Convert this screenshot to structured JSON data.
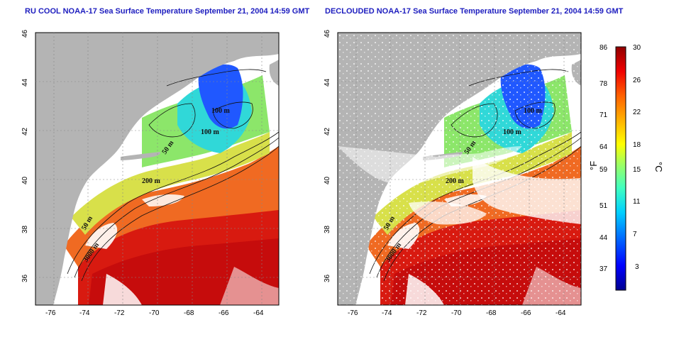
{
  "titles": {
    "left": "RU COOL NOAA-17 Sea Surface Temperature September 21, 2004 14:59 GMT",
    "right": "DECLOUDED NOAA-17 Sea Surface Temperature September 21, 2004 14:59 GMT"
  },
  "axes": {
    "lon_ticks": [
      "-76",
      "-74",
      "-72",
      "-70",
      "-68",
      "-66",
      "-64"
    ],
    "lat_ticks": [
      "36",
      "38",
      "40",
      "42",
      "44",
      "46"
    ]
  },
  "contour_labels": {
    "left": [
      "100 m",
      "100 m",
      "50 m",
      "200 m",
      "50 m",
      "3000 m"
    ],
    "right": [
      "100 m",
      "100 m",
      "50 m",
      "200 m",
      "50 m",
      "3000 m"
    ]
  },
  "colorbar": {
    "f_label": "°F",
    "c_label": "°C",
    "f_ticks": [
      "86",
      "78",
      "71",
      "64",
      "59",
      "51",
      "44",
      "37"
    ],
    "c_ticks": [
      "30",
      "26",
      "22",
      "18",
      "15",
      "11",
      "7",
      "3"
    ],
    "colors": [
      "#00008f",
      "#0000ff",
      "#0070ff",
      "#00d0ff",
      "#40ffc0",
      "#a0ff60",
      "#ffff00",
      "#ffb000",
      "#ff6000",
      "#f00000",
      "#900000"
    ]
  },
  "map_colors": {
    "land": "#b4b4b4",
    "cloud": "#ffffff",
    "warm": "#d81a10",
    "hot": "#c60c0c",
    "orange": "#f06a22",
    "yellow": "#e6e04a",
    "green": "#8ce66a",
    "cyan": "#30d8d8",
    "blue": "#2058ff"
  }
}
